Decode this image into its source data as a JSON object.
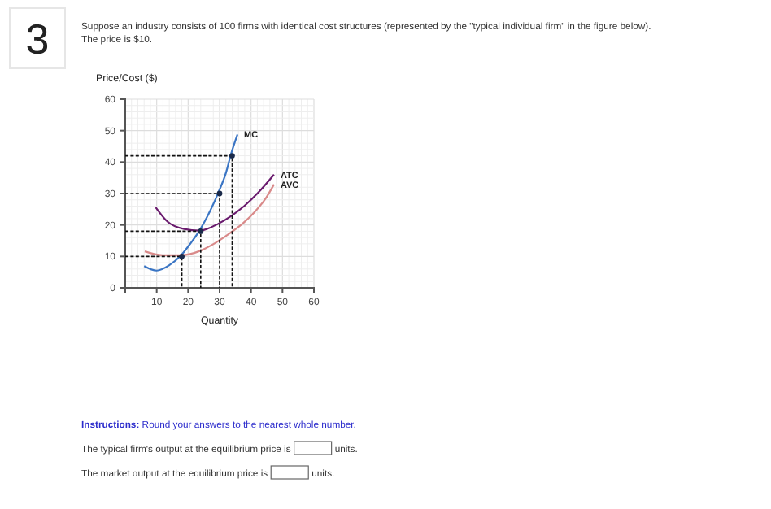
{
  "chart_data": {
    "type": "line",
    "xlabel": "Quantity",
    "ylabel": "Price/Cost ($)",
    "xlim": [
      0,
      60
    ],
    "ylim": [
      0,
      60
    ],
    "xticks": [
      {
        "value": 0,
        "label": null
      },
      10,
      20,
      30,
      40,
      50,
      60
    ],
    "yticks": [
      0,
      10,
      20,
      30,
      40,
      50,
      60
    ],
    "grid": true,
    "marker": "none",
    "line_style": "solid",
    "series": [
      {
        "name": "MC",
        "color": "#3a75c4",
        "x": [
          6,
          10,
          14,
          17.8,
          20.5,
          23.6,
          27,
          29.6,
          32,
          33.6,
          35.7
        ],
        "values": [
          6.9,
          5.5,
          7.2,
          10.4,
          13.8,
          18.2,
          24.5,
          30.3,
          36.5,
          42.4,
          48.8
        ]
      },
      {
        "name": "ATC",
        "color": "#6a1b6e",
        "x": [
          9.7,
          13.5,
          18.7,
          23.6,
          29.6,
          33.6,
          37.8,
          42.5,
          47.3
        ],
        "values": [
          25.6,
          21,
          18.7,
          18.2,
          20.4,
          22.8,
          26,
          30.5,
          36
        ]
      },
      {
        "name": "AVC",
        "color": "#d98a8a",
        "x": [
          6.2,
          11.8,
          17.8,
          23.9,
          28.5,
          33.6,
          37.5,
          41.2,
          44.5,
          47.3
        ],
        "values": [
          11.6,
          10.4,
          10.4,
          11.8,
          14.2,
          17.6,
          20.6,
          24.2,
          28.2,
          32.9
        ]
      },
      {
        "color": "#111111",
        "line_style": "dashed",
        "x": [
          0,
          18,
          18
        ],
        "values": [
          10,
          10,
          0
        ]
      },
      {
        "color": "#111111",
        "line_style": "dashed",
        "x": [
          0,
          24,
          24
        ],
        "values": [
          18,
          18,
          0
        ]
      },
      {
        "color": "#111111",
        "line_style": "dashed",
        "x": [
          0,
          30,
          30
        ],
        "values": [
          30,
          30,
          0
        ]
      },
      {
        "color": "#111111",
        "line_style": "dashed",
        "x": [
          0,
          34,
          34
        ],
        "values": [
          42,
          42,
          0
        ]
      },
      {
        "type": "scatter",
        "color": "#1a2a4a",
        "marker": "circle",
        "x": [
          18,
          24,
          30,
          34
        ],
        "values": [
          10,
          18,
          30,
          42
        ]
      }
    ],
    "annotations": [
      "3",
      "Suppose an industry consists of 100 firms with identical cost structures (represented by the \"typical individual firm\" in the figure below).",
      "The price is $10.",
      "Instructions: Round your answers to the nearest whole number.",
      "The typical firm's output at the equilibrium price is",
      "units.",
      "The market output at the equilibrium price is",
      "units."
    ]
  }
}
